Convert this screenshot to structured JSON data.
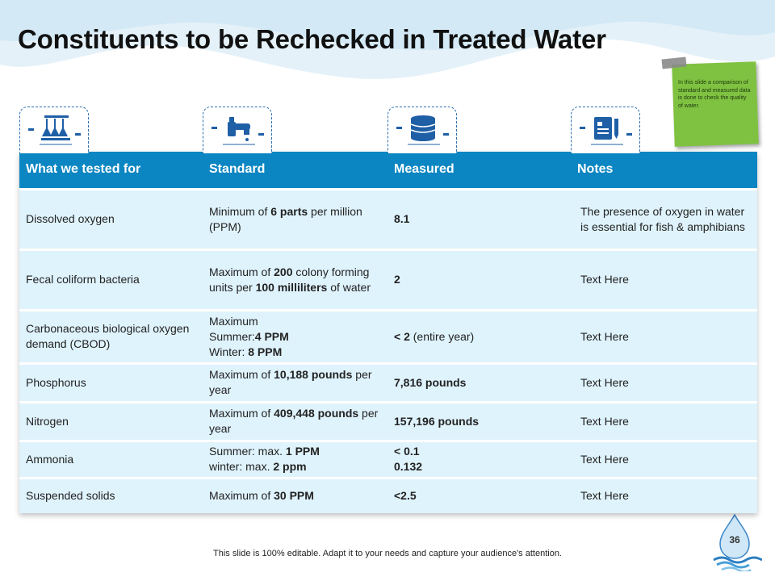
{
  "title": "Constituents to be Rechecked in Treated Water",
  "sticky_note": "In this slide a comparison of standard and measured data is done to check the quality of water.",
  "icons": [
    "lab-flasks-icon",
    "water-tap-icon",
    "database-icon",
    "document-pen-icon"
  ],
  "colors": {
    "header": "#0b86c2",
    "row": "#dff3fc",
    "sticky": "#7fc241",
    "accent": "#2b6fb0"
  },
  "table": {
    "headers": [
      "What we tested for",
      "Standard",
      "Measured",
      "Notes"
    ],
    "rows": [
      {
        "tested": "Dissolved oxygen",
        "standard": [
          [
            "Minimum of ",
            false
          ],
          [
            "6 parts",
            true
          ],
          [
            " per million (PPM)",
            false
          ]
        ],
        "measured": [
          [
            "8.1",
            true
          ]
        ],
        "notes": "The presence of oxygen in water is essential for  fish & amphibians"
      },
      {
        "tested": "Fecal coliform bacteria",
        "standard": [
          [
            "Maximum  of ",
            false
          ],
          [
            "200",
            true
          ],
          [
            " colony forming units per ",
            false
          ],
          [
            "100 milliliters",
            true
          ],
          [
            "  of water",
            false
          ]
        ],
        "measured": [
          [
            "2",
            true
          ]
        ],
        "notes": "Text Here"
      },
      {
        "tested": "Carbonaceous biological oxygen demand (CBOD)",
        "standard": [
          [
            "Maximum",
            false
          ],
          [
            "\n",
            false
          ],
          [
            "Summer:",
            false
          ],
          [
            "4 PPM",
            true
          ],
          [
            "\n",
            false
          ],
          [
            "Winter: ",
            false
          ],
          [
            "8 PPM",
            true
          ]
        ],
        "measured": [
          [
            "< 2",
            true
          ],
          [
            " (entire year)",
            false
          ]
        ],
        "notes": "Text Here"
      },
      {
        "tested": "Phosphorus",
        "standard": [
          [
            "Maximum  of ",
            false
          ],
          [
            "10,188 pounds",
            true
          ],
          [
            " per year",
            false
          ]
        ],
        "measured": [
          [
            "7,816 pounds",
            true
          ]
        ],
        "notes": "Text Here"
      },
      {
        "tested": "Nitrogen",
        "standard": [
          [
            "Maximum  of ",
            false
          ],
          [
            "409,448 pounds",
            true
          ],
          [
            " per year",
            false
          ]
        ],
        "measured": [
          [
            "157,196 pounds",
            true
          ]
        ],
        "notes": "Text Here"
      },
      {
        "tested": "Ammonia",
        "standard": [
          [
            "Summer: max. ",
            false
          ],
          [
            "1 PPM",
            true
          ],
          [
            "\n",
            false
          ],
          [
            "winter:    max. ",
            false
          ],
          [
            "2 ppm",
            true
          ]
        ],
        "measured": [
          [
            "< 0.1",
            true
          ],
          [
            "\n",
            false
          ],
          [
            "0.132",
            true
          ]
        ],
        "notes": "Text Here"
      },
      {
        "tested": "Suspended solids",
        "standard": [
          [
            "Maximum  of ",
            false
          ],
          [
            "30 PPM",
            true
          ]
        ],
        "measured": [
          [
            "<2.5",
            true
          ]
        ],
        "notes": "Text Here"
      }
    ]
  },
  "footer": "This slide is 100% editable. Adapt it to your needs and capture your audience's attention.",
  "page_number": "36"
}
